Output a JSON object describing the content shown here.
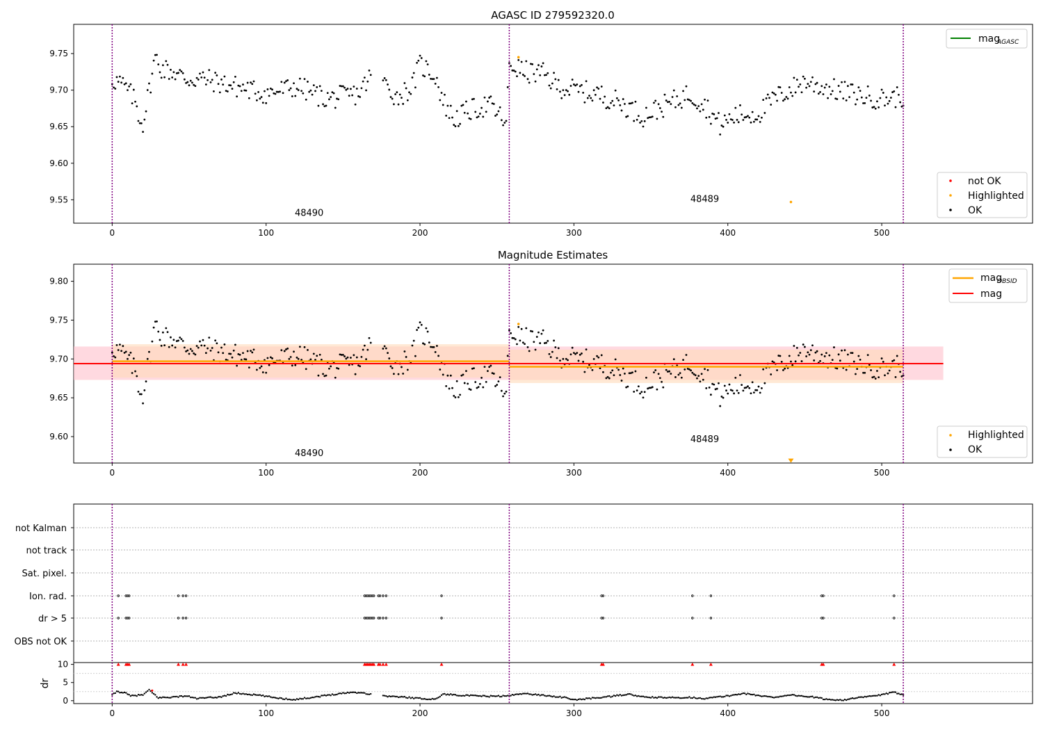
{
  "colors": {
    "ok": "#000000",
    "not_ok": "#ff0000",
    "highlighted": "#ffa500",
    "mag_agasc": "#008000",
    "mag": "#ff0000",
    "mag_obsid": "#ffa500",
    "obs_boundary": "#800080",
    "mag_band": "#ffc0cb",
    "obsid_band": "#ffdab9"
  },
  "chart_data": [
    {
      "id": "top",
      "type": "scatter",
      "title": "AGASC ID 279592320.0",
      "xlim": [
        -25,
        598
      ],
      "ylim": [
        9.518,
        9.79
      ],
      "xticks": [
        0,
        100,
        200,
        300,
        400,
        500
      ],
      "yticks": [
        9.55,
        9.6,
        9.65,
        9.7,
        9.75
      ],
      "ytick_labels": [
        "9.55",
        "9.60",
        "9.65",
        "9.70",
        "9.75"
      ],
      "obs_boundaries": [
        0,
        258,
        514
      ],
      "obs_labels": [
        {
          "text": "48490",
          "x": 128,
          "y": 9.528
        },
        {
          "text": "48489",
          "x": 385,
          "y": 9.547
        }
      ],
      "legend_top": [
        {
          "label_main": "mag",
          "label_sub": "AGASC",
          "color_key": "mag_agasc",
          "kind": "line"
        }
      ],
      "legend_bottom": [
        {
          "label": "not OK",
          "color_key": "not_ok"
        },
        {
          "label": "Highlighted",
          "color_key": "highlighted"
        },
        {
          "label": "OK",
          "color_key": "ok"
        }
      ],
      "highlighted_points": [
        [
          264,
          9.745
        ],
        [
          441,
          9.547
        ]
      ],
      "series_ok_keypoints": [
        [
          0,
          9.715
        ],
        [
          5,
          9.71
        ],
        [
          10,
          9.7
        ],
        [
          15,
          9.685
        ],
        [
          18,
          9.66
        ],
        [
          20,
          9.655
        ],
        [
          24,
          9.7
        ],
        [
          28,
          9.745
        ],
        [
          32,
          9.73
        ],
        [
          40,
          9.725
        ],
        [
          48,
          9.715
        ],
        [
          60,
          9.715
        ],
        [
          80,
          9.705
        ],
        [
          100,
          9.695
        ],
        [
          120,
          9.705
        ],
        [
          140,
          9.688
        ],
        [
          160,
          9.695
        ],
        [
          170,
          9.725
        ],
        [
          175,
          9.715
        ],
        [
          185,
          9.69
        ],
        [
          195,
          9.705
        ],
        [
          200,
          9.735
        ],
        [
          210,
          9.72
        ],
        [
          215,
          9.685
        ],
        [
          222,
          9.66
        ],
        [
          232,
          9.672
        ],
        [
          245,
          9.68
        ],
        [
          254,
          9.66
        ],
        [
          256,
          9.65
        ],
        [
          258,
          9.735
        ],
        [
          268,
          9.725
        ],
        [
          280,
          9.722
        ],
        [
          290,
          9.705
        ],
        [
          300,
          9.7
        ],
        [
          315,
          9.695
        ],
        [
          330,
          9.683
        ],
        [
          345,
          9.665
        ],
        [
          360,
          9.68
        ],
        [
          375,
          9.695
        ],
        [
          385,
          9.68
        ],
        [
          395,
          9.652
        ],
        [
          405,
          9.665
        ],
        [
          420,
          9.668
        ],
        [
          430,
          9.688
        ],
        [
          440,
          9.7
        ],
        [
          450,
          9.712
        ],
        [
          460,
          9.705
        ],
        [
          480,
          9.695
        ],
        [
          500,
          9.688
        ],
        [
          514,
          9.692
        ]
      ]
    },
    {
      "id": "middle",
      "type": "scatter",
      "title": "Magnitude Estimates",
      "xlim": [
        -25,
        598
      ],
      "ylim": [
        9.566,
        9.822
      ],
      "xticks": [
        0,
        100,
        200,
        300,
        400,
        500
      ],
      "yticks": [
        9.6,
        9.65,
        9.7,
        9.75,
        9.8
      ],
      "ytick_labels": [
        "9.60",
        "9.65",
        "9.70",
        "9.75",
        "9.80"
      ],
      "obs_boundaries": [
        0,
        258,
        514
      ],
      "obs_labels": [
        {
          "text": "48490",
          "x": 128,
          "y": 9.575
        },
        {
          "text": "48489",
          "x": 385,
          "y": 9.593
        }
      ],
      "legend_top": [
        {
          "label_main": "mag",
          "label_sub": "OBSID",
          "color_key": "mag_obsid",
          "kind": "line"
        },
        {
          "label_main": "mag",
          "label_sub": "",
          "color_key": "mag",
          "kind": "line"
        }
      ],
      "legend_bottom": [
        {
          "label": "Highlighted",
          "color_key": "highlighted"
        },
        {
          "label": "OK",
          "color_key": "ok"
        }
      ],
      "mag_line": {
        "value": 9.694,
        "x0": -25,
        "x1": 540,
        "band": [
          9.673,
          9.716
        ]
      },
      "obsid_lines": [
        {
          "x0": 0,
          "x1": 258,
          "value": 9.697,
          "band": [
            9.676,
            9.719
          ]
        },
        {
          "x0": 258,
          "x1": 514,
          "value": 9.69,
          "band": [
            9.669,
            9.712
          ]
        }
      ],
      "highlighted_points": [
        [
          264,
          9.745
        ]
      ],
      "offscale_marker": {
        "x": 441,
        "y": 9.569
      }
    },
    {
      "id": "flags",
      "type": "scatter",
      "xlim": [
        -25,
        598
      ],
      "categories": [
        "not Kalman",
        "not track",
        "Sat. pixel.",
        "Ion. rad.",
        "dr > 5",
        "OBS not OK"
      ],
      "obs_boundaries": [
        0,
        258,
        514
      ],
      "flag_rows": {
        "Ion. rad.": [
          4,
          9,
          10,
          11,
          43,
          46,
          48,
          164,
          165,
          166,
          167,
          168,
          169,
          170,
          173,
          174,
          176,
          178,
          214,
          318,
          319,
          377,
          389,
          461,
          462,
          508
        ],
        "dr > 5": [
          4,
          9,
          10,
          11,
          43,
          46,
          48,
          164,
          165,
          166,
          167,
          168,
          169,
          170,
          173,
          174,
          176,
          178,
          214,
          318,
          319,
          377,
          389,
          461,
          462,
          508
        ]
      }
    },
    {
      "id": "dr",
      "type": "scatter",
      "ylabel": "dr",
      "xlim": [
        -25,
        598
      ],
      "ylim": [
        -0.8,
        10.5
      ],
      "xticks": [
        0,
        100,
        200,
        300,
        400,
        500
      ],
      "yticks": [
        0,
        5,
        10
      ],
      "ytick_labels": [
        "0",
        "5",
        "10"
      ],
      "obs_boundaries": [
        0,
        258,
        514
      ],
      "clipped_x": [
        4,
        9,
        10,
        11,
        43,
        46,
        48,
        164,
        165,
        166,
        167,
        168,
        169,
        170,
        173,
        174,
        176,
        178,
        214,
        318,
        319,
        377,
        389,
        461,
        462,
        508
      ],
      "highlighted_points": [
        [
          26,
          2.8
        ]
      ],
      "series_keypoints": [
        [
          0,
          1.5
        ],
        [
          3,
          2.5
        ],
        [
          8,
          2.2
        ],
        [
          12,
          1.3
        ],
        [
          20,
          1.6
        ],
        [
          24,
          2.9
        ],
        [
          30,
          0.8
        ],
        [
          40,
          1.0
        ],
        [
          48,
          1.3
        ],
        [
          55,
          0.6
        ],
        [
          70,
          1.0
        ],
        [
          80,
          2.1
        ],
        [
          95,
          1.5
        ],
        [
          110,
          0.6
        ],
        [
          118,
          0.3
        ],
        [
          130,
          0.9
        ],
        [
          145,
          1.8
        ],
        [
          155,
          2.3
        ],
        [
          162,
          2.2
        ],
        [
          170,
          1.6
        ],
        [
          180,
          1.2
        ],
        [
          192,
          0.9
        ],
        [
          200,
          0.6
        ],
        [
          210,
          0.4
        ],
        [
          215,
          1.8
        ],
        [
          230,
          1.4
        ],
        [
          245,
          1.2
        ],
        [
          258,
          1.3
        ],
        [
          265,
          2.0
        ],
        [
          280,
          1.5
        ],
        [
          295,
          0.8
        ],
        [
          300,
          0.2
        ],
        [
          310,
          0.6
        ],
        [
          325,
          1.2
        ],
        [
          335,
          1.8
        ],
        [
          345,
          1.0
        ],
        [
          360,
          0.8
        ],
        [
          375,
          0.9
        ],
        [
          385,
          0.6
        ],
        [
          400,
          1.3
        ],
        [
          410,
          2.0
        ],
        [
          420,
          1.4
        ],
        [
          430,
          0.9
        ],
        [
          440,
          1.6
        ],
        [
          455,
          1.0
        ],
        [
          465,
          0.3
        ],
        [
          475,
          0.2
        ],
        [
          485,
          0.8
        ],
        [
          500,
          1.6
        ],
        [
          508,
          2.3
        ],
        [
          514,
          1.7
        ]
      ]
    }
  ]
}
